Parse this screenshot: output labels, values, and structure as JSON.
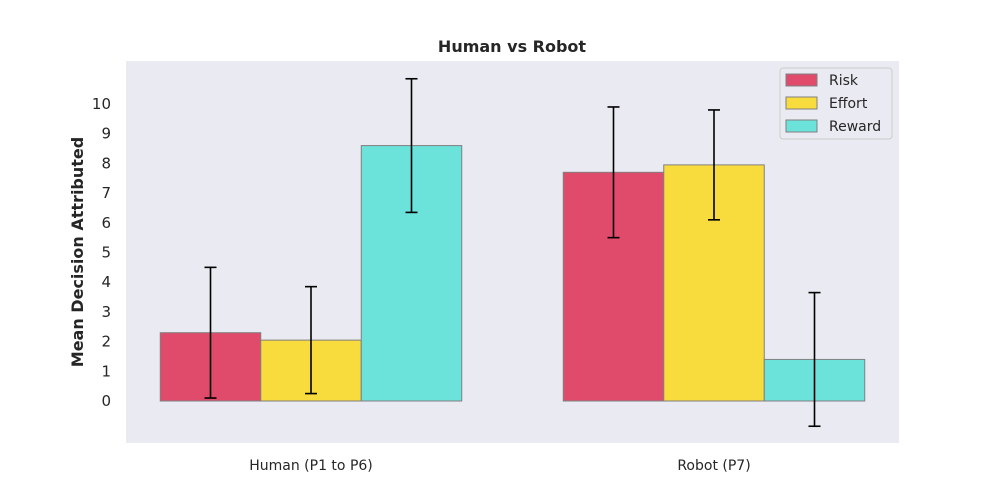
{
  "chart_data": {
    "type": "bar",
    "title": "Human vs Robot",
    "xlabel": "",
    "ylabel": "Mean Decision Attributed",
    "categories": [
      "Human (P1 to P6)",
      "Robot (P7)"
    ],
    "series": [
      {
        "name": "Risk",
        "values": [
          2.3,
          7.7
        ],
        "errors": [
          2.2,
          2.2
        ],
        "color": "#e04b6b"
      },
      {
        "name": "Effort",
        "values": [
          2.05,
          7.95
        ],
        "errors": [
          1.8,
          1.85
        ],
        "color": "#f8db3c"
      },
      {
        "name": "Reward",
        "values": [
          8.6,
          1.4
        ],
        "errors": [
          2.25,
          2.25
        ],
        "color": "#6be2da"
      }
    ],
    "yticks": [
      "0",
      "1",
      "2",
      "3",
      "4",
      "5",
      "6",
      "7",
      "8",
      "9",
      "10"
    ],
    "ylim": [
      -1.4,
      11.4
    ],
    "grid": false,
    "legend_position": "top-right",
    "background": "#eaeaf2"
  }
}
